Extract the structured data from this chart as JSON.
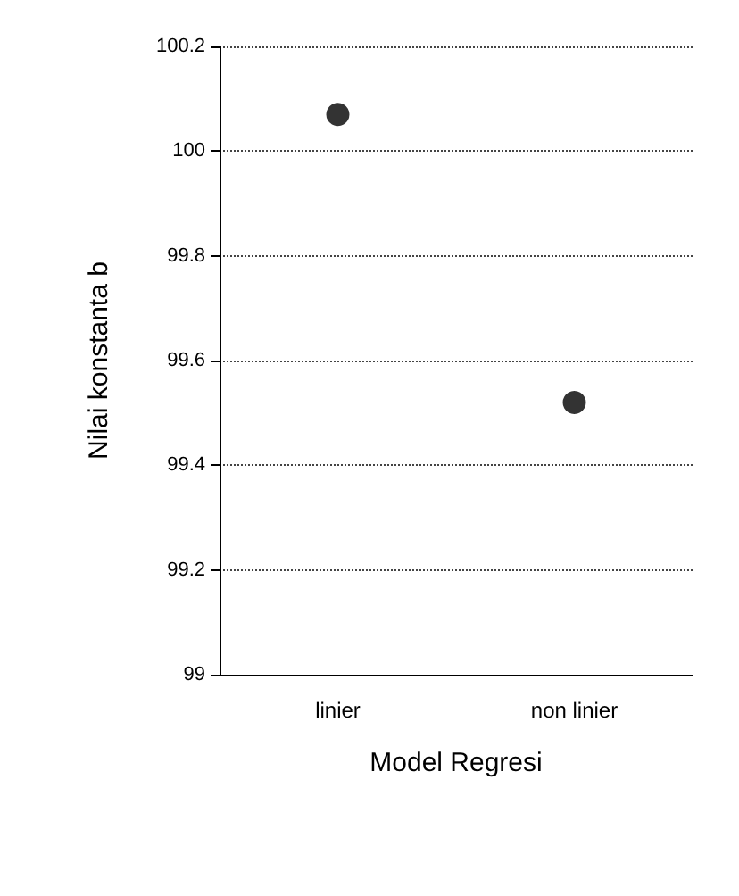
{
  "chart_data": {
    "type": "scatter",
    "xlabel": "Model Regresi",
    "ylabel": "Nilai konstanta b",
    "categories": [
      "linier",
      "non linier"
    ],
    "series": [
      {
        "color": "#000000",
        "values": [
          100.07,
          99.52
        ]
      }
    ],
    "ylim": [
      99,
      100.2
    ],
    "yticks": [
      99,
      99.2,
      99.4,
      99.6,
      99.8,
      100,
      100.2
    ],
    "grid": "y",
    "marker": "circle"
  }
}
